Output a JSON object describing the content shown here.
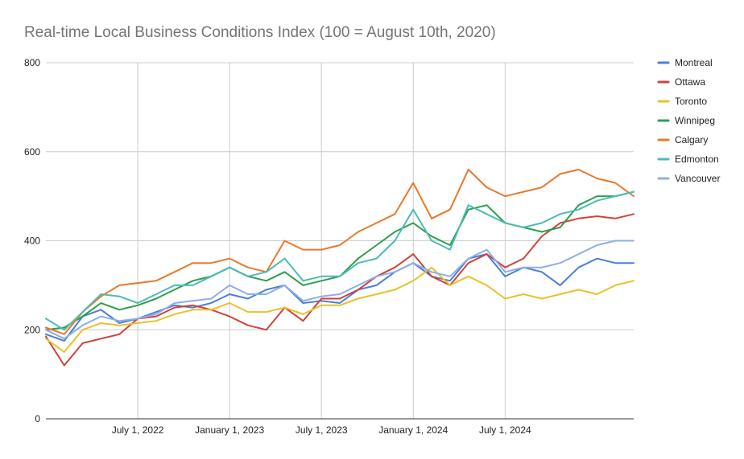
{
  "chart_data": {
    "type": "line",
    "title": "Real-time Local Business Conditions Index (100 = August 10th, 2020)",
    "xlabel": "",
    "ylabel": "",
    "ylim": [
      0,
      800
    ],
    "yticks": [
      0,
      200,
      400,
      600,
      800
    ],
    "xlim": [
      2022.0,
      2025.2
    ],
    "xticks": [
      {
        "value": 2022.5,
        "label": "July 1, 2022"
      },
      {
        "value": 2023.0,
        "label": "January 1, 2023"
      },
      {
        "value": 2023.5,
        "label": "July 1, 2023"
      },
      {
        "value": 2024.0,
        "label": "January 1, 2024"
      },
      {
        "value": 2024.5,
        "label": "July 1, 2024"
      }
    ],
    "grid": true,
    "legend_position": "right",
    "x": [
      2022.0,
      2022.1,
      2022.2,
      2022.3,
      2022.4,
      2022.5,
      2022.6,
      2022.7,
      2022.8,
      2022.9,
      2023.0,
      2023.1,
      2023.2,
      2023.3,
      2023.4,
      2023.5,
      2023.6,
      2023.7,
      2023.8,
      2023.9,
      2024.0,
      2024.1,
      2024.2,
      2024.3,
      2024.4,
      2024.5,
      2024.6,
      2024.7,
      2024.8,
      2024.9,
      2025.0,
      2025.1,
      2025.2
    ],
    "series": [
      {
        "name": "Montreal",
        "color": "#4a7fd4",
        "values": [
          190,
          175,
          230,
          245,
          215,
          225,
          240,
          255,
          250,
          260,
          280,
          270,
          290,
          300,
          260,
          265,
          260,
          290,
          300,
          330,
          350,
          320,
          310,
          360,
          370,
          320,
          340,
          330,
          300,
          340,
          360,
          350,
          350
        ]
      },
      {
        "name": "Ottawa",
        "color": "#d2413b",
        "values": [
          185,
          120,
          170,
          180,
          190,
          225,
          230,
          250,
          255,
          245,
          230,
          210,
          200,
          250,
          220,
          270,
          270,
          290,
          320,
          340,
          370,
          320,
          300,
          350,
          370,
          340,
          360,
          410,
          440,
          450,
          455,
          450,
          460
        ]
      },
      {
        "name": "Toronto",
        "color": "#e9c12a",
        "values": [
          180,
          150,
          200,
          215,
          210,
          215,
          220,
          235,
          245,
          245,
          260,
          240,
          240,
          250,
          235,
          255,
          255,
          270,
          280,
          290,
          310,
          340,
          300,
          320,
          300,
          270,
          280,
          270,
          280,
          290,
          280,
          300,
          310
        ]
      },
      {
        "name": "Winnipeg",
        "color": "#2f9e4c",
        "values": [
          200,
          205,
          230,
          260,
          245,
          255,
          270,
          290,
          310,
          320,
          340,
          320,
          310,
          330,
          300,
          310,
          320,
          360,
          390,
          420,
          440,
          410,
          390,
          470,
          480,
          440,
          430,
          420,
          430,
          480,
          500,
          500,
          510
        ]
      },
      {
        "name": "Calgary",
        "color": "#e9792b",
        "values": [
          205,
          190,
          240,
          275,
          300,
          305,
          310,
          330,
          350,
          350,
          360,
          340,
          330,
          400,
          380,
          380,
          390,
          420,
          440,
          460,
          530,
          450,
          470,
          560,
          520,
          500,
          510,
          520,
          550,
          560,
          540,
          530,
          500
        ]
      },
      {
        "name": "Edmonton",
        "color": "#4bbcb3",
        "values": [
          225,
          200,
          240,
          280,
          275,
          260,
          280,
          300,
          300,
          320,
          340,
          320,
          330,
          360,
          310,
          320,
          320,
          350,
          360,
          400,
          470,
          400,
          380,
          480,
          460,
          440,
          430,
          440,
          460,
          470,
          490,
          500,
          510
        ]
      },
      {
        "name": "Vancouver",
        "color": "#8eadea",
        "values": [
          200,
          180,
          210,
          230,
          220,
          225,
          235,
          260,
          265,
          270,
          300,
          280,
          280,
          300,
          265,
          275,
          280,
          300,
          320,
          330,
          350,
          330,
          320,
          360,
          380,
          330,
          340,
          340,
          350,
          370,
          390,
          400,
          400
        ]
      }
    ]
  }
}
